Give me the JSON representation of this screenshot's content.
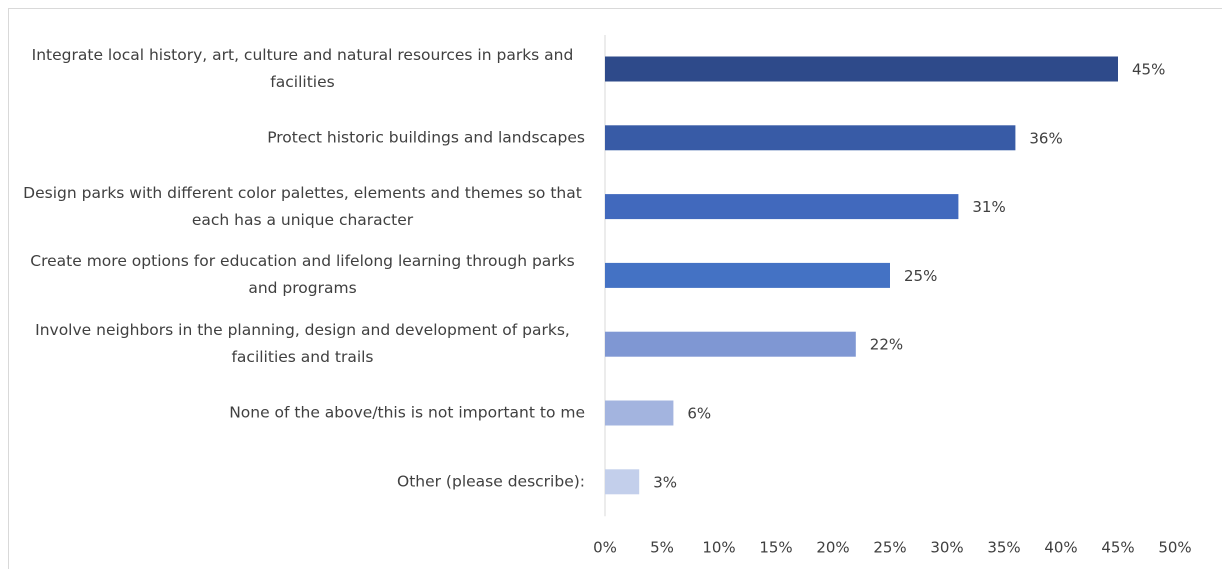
{
  "chart_data": {
    "type": "bar",
    "categories": [
      "Integrate local history, art, culture and natural resources in parks and facilities",
      "Protect historic buildings and landscapes",
      "Design parks with different color palettes, elements and themes so that each has a unique character",
      "Create more options for education and lifelong learning through parks and programs",
      "Involve neighbors in the planning, design and development of parks, facilities and trails",
      "None of the above/this is not important to me",
      "Other (please describe):"
    ],
    "values": [
      45,
      36,
      31,
      25,
      22,
      6,
      3
    ],
    "value_labels": [
      "45%",
      "36%",
      "31%",
      "25%",
      "22%",
      "6%",
      "3%"
    ],
    "colors": [
      "#2e4a8a",
      "#385ba6",
      "#4169bd",
      "#4472c4",
      "#7f97d3",
      "#a3b4df",
      "#c3cfeb"
    ],
    "xlim": [
      0,
      50
    ],
    "xticks": [
      {
        "value": 0,
        "label": "0%"
      },
      {
        "value": 5,
        "label": "5%"
      },
      {
        "value": 10,
        "label": "10%"
      },
      {
        "value": 15,
        "label": "15%"
      },
      {
        "value": 20,
        "label": "20%"
      },
      {
        "value": 25,
        "label": "25%"
      },
      {
        "value": 30,
        "label": "30%"
      },
      {
        "value": 35,
        "label": "35%"
      },
      {
        "value": 40,
        "label": "40%"
      },
      {
        "value": 45,
        "label": "45%"
      },
      {
        "value": 50,
        "label": "50%"
      }
    ]
  }
}
